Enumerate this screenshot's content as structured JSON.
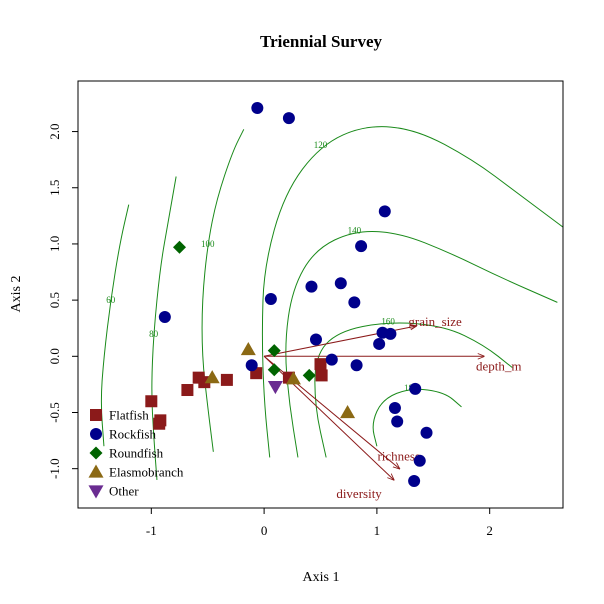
{
  "chart_data": {
    "type": "scatter",
    "title": "Triennial Survey",
    "xlabel": "Axis 1",
    "ylabel": "Axis 2",
    "xlim": [
      -1.65,
      2.65
    ],
    "ylim": [
      -1.35,
      2.45
    ],
    "xticks": [
      -1,
      0,
      1,
      2
    ],
    "yticks": [
      -1.0,
      -0.5,
      0.0,
      0.5,
      1.0,
      1.5,
      2.0
    ],
    "xtick_labels": [
      "-1",
      "0",
      "1",
      "2"
    ],
    "ytick_labels": [
      "-1.0",
      "-0.5",
      "0.0",
      "0.5",
      "1.0",
      "1.5",
      "2.0"
    ],
    "grid": false,
    "legend_position": "bottom-left",
    "series": [
      {
        "name": "Flatfish",
        "marker": "square",
        "color": "#8b1a1a",
        "points": [
          [
            -1.0,
            -0.4
          ],
          [
            -0.92,
            -0.57
          ],
          [
            -0.93,
            -0.6
          ],
          [
            -0.68,
            -0.3
          ],
          [
            -0.58,
            -0.19
          ],
          [
            -0.53,
            -0.23
          ],
          [
            -0.33,
            -0.21
          ],
          [
            -0.07,
            -0.15
          ],
          [
            0.22,
            -0.19
          ],
          [
            0.5,
            -0.07
          ],
          [
            0.51,
            -0.17
          ]
        ]
      },
      {
        "name": "Rockfish",
        "marker": "circle",
        "color": "#00008b",
        "points": [
          [
            -0.06,
            2.21
          ],
          [
            0.22,
            2.12
          ],
          [
            1.07,
            1.29
          ],
          [
            0.86,
            0.98
          ],
          [
            0.06,
            0.51
          ],
          [
            0.42,
            0.62
          ],
          [
            0.68,
            0.65
          ],
          [
            0.8,
            0.48
          ],
          [
            -0.88,
            0.35
          ],
          [
            0.46,
            0.15
          ],
          [
            1.05,
            0.21
          ],
          [
            1.12,
            0.2
          ],
          [
            1.02,
            0.11
          ],
          [
            -0.11,
            -0.08
          ],
          [
            0.6,
            -0.03
          ],
          [
            0.82,
            -0.08
          ],
          [
            1.34,
            -0.29
          ],
          [
            1.16,
            -0.46
          ],
          [
            1.18,
            -0.58
          ],
          [
            1.44,
            -0.68
          ],
          [
            1.38,
            -0.93
          ],
          [
            1.33,
            -1.11
          ]
        ]
      },
      {
        "name": "Roundfish",
        "marker": "diamond",
        "color": "#006400",
        "points": [
          [
            -0.75,
            0.97
          ],
          [
            0.09,
            0.05
          ],
          [
            0.09,
            -0.12
          ],
          [
            0.4,
            -0.17
          ]
        ]
      },
      {
        "name": "Elasmobranch",
        "marker": "triangle-up",
        "color": "#8b6914",
        "points": [
          [
            -0.14,
            0.06
          ],
          [
            -0.46,
            -0.19
          ],
          [
            0.26,
            -0.2
          ],
          [
            0.74,
            -0.5
          ]
        ]
      },
      {
        "name": "Other",
        "marker": "triangle-down",
        "color": "#6a2c91",
        "points": [
          [
            0.1,
            -0.27
          ]
        ]
      }
    ],
    "vectors": [
      {
        "label": "grain_size",
        "end": [
          1.35,
          0.27
        ]
      },
      {
        "label": "depth_m",
        "end": [
          1.95,
          0.0
        ]
      },
      {
        "label": "richness",
        "end": [
          1.2,
          -1.0
        ]
      },
      {
        "label": "diversity",
        "end": [
          1.15,
          -1.1
        ]
      }
    ],
    "contours": [
      {
        "label": "60",
        "points": [
          [
            -1.42,
            -0.8
          ],
          [
            -1.45,
            -0.4
          ],
          [
            -1.42,
            0.0
          ],
          [
            -1.36,
            0.5
          ],
          [
            -1.28,
            1.0
          ],
          [
            -1.2,
            1.35
          ]
        ]
      },
      {
        "label": "80",
        "points": [
          [
            -0.95,
            -1.1
          ],
          [
            -0.98,
            -0.7
          ],
          [
            -1.0,
            -0.3
          ],
          [
            -0.98,
            0.2
          ],
          [
            -0.92,
            0.8
          ],
          [
            -0.85,
            1.2
          ],
          [
            -0.78,
            1.6
          ]
        ]
      },
      {
        "label": "100",
        "points": [
          [
            -0.45,
            -0.85
          ],
          [
            -0.5,
            -0.45
          ],
          [
            -0.55,
            0.0
          ],
          [
            -0.55,
            0.5
          ],
          [
            -0.5,
            1.0
          ],
          [
            -0.42,
            1.4
          ],
          [
            -0.28,
            1.82
          ],
          [
            -0.18,
            2.02
          ]
        ]
      },
      {
        "label": "120",
        "points": [
          [
            0.05,
            -0.9
          ],
          [
            0.0,
            -0.4
          ],
          [
            -0.02,
            0.2
          ],
          [
            0.0,
            0.8
          ],
          [
            0.18,
            1.45
          ],
          [
            0.5,
            1.88
          ],
          [
            0.9,
            2.06
          ],
          [
            1.35,
            2.02
          ],
          [
            1.85,
            1.75
          ],
          [
            2.25,
            1.45
          ],
          [
            2.65,
            1.15
          ]
        ]
      },
      {
        "label": "140",
        "points": [
          [
            0.3,
            -0.9
          ],
          [
            0.22,
            -0.4
          ],
          [
            0.18,
            0.1
          ],
          [
            0.25,
            0.6
          ],
          [
            0.45,
            0.95
          ],
          [
            0.8,
            1.12
          ],
          [
            1.2,
            1.1
          ],
          [
            1.65,
            0.92
          ],
          [
            2.1,
            0.7
          ],
          [
            2.6,
            0.48
          ]
        ]
      },
      {
        "label": "160",
        "points": [
          [
            0.55,
            -0.9
          ],
          [
            0.45,
            -0.45
          ],
          [
            0.45,
            0.0
          ],
          [
            0.65,
            0.22
          ],
          [
            1.1,
            0.31
          ],
          [
            1.6,
            0.27
          ],
          [
            1.95,
            0.1
          ],
          [
            2.2,
            -0.1
          ]
        ]
      },
      {
        "label": "180",
        "points": [
          [
            1.0,
            -0.8
          ],
          [
            0.95,
            -0.6
          ],
          [
            1.05,
            -0.38
          ],
          [
            1.3,
            -0.28
          ],
          [
            1.6,
            -0.32
          ],
          [
            1.75,
            -0.45
          ]
        ]
      }
    ]
  }
}
